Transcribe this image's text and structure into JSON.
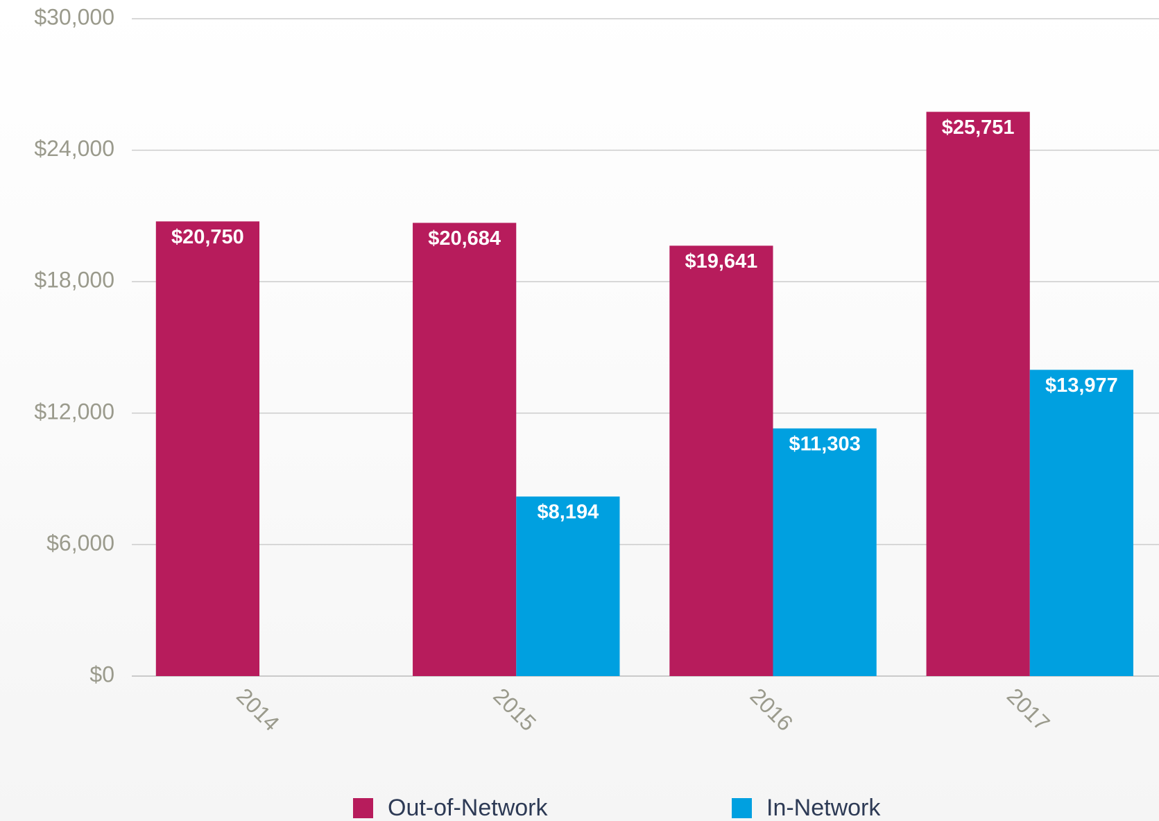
{
  "chart_data": {
    "type": "bar",
    "categories": [
      "2014",
      "2015",
      "2016",
      "2017"
    ],
    "series": [
      {
        "name": "Out-of-Network",
        "color": "#b71c5c",
        "values": [
          20750,
          20684,
          19641,
          25751
        ],
        "value_labels": [
          "$20,750",
          "$20,684",
          "$19,641",
          "$25,751"
        ]
      },
      {
        "name": "In-Network",
        "color": "#00a0e0",
        "values": [
          null,
          8194,
          11303,
          13977
        ],
        "value_labels": [
          null,
          "$8,194",
          "$11,303",
          "$13,977"
        ]
      }
    ],
    "ylim": [
      0,
      30000
    ],
    "yticks": [
      {
        "value": 0,
        "label": "$0"
      },
      {
        "value": 6000,
        "label": "$6,000"
      },
      {
        "value": 12000,
        "label": "$12,000"
      },
      {
        "value": 18000,
        "label": "$18,000"
      },
      {
        "value": 24000,
        "label": "$24,000"
      },
      {
        "value": 30000,
        "label": "$30,000"
      }
    ],
    "grid": true
  }
}
